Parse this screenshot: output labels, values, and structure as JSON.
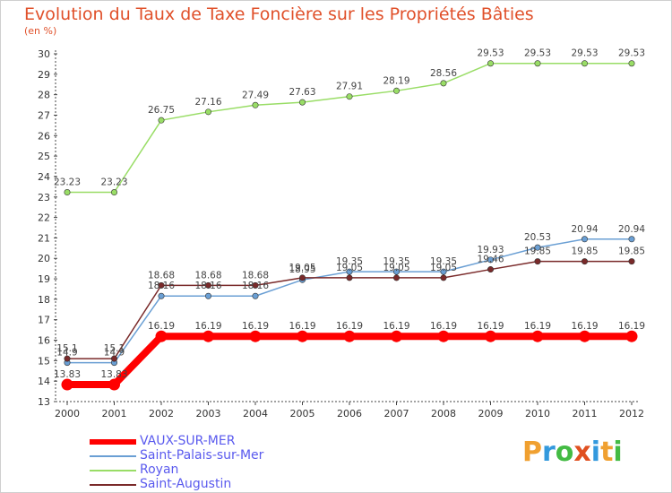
{
  "chart_data": {
    "type": "line",
    "title": "Evolution du Taux de Taxe Foncière sur les Propriétés Bâties",
    "ylabel": "(en %)",
    "xlabel": "",
    "x": [
      "2000",
      "2001",
      "2002",
      "2003",
      "2004",
      "2005",
      "2006",
      "2007",
      "2008",
      "2009",
      "2010",
      "2011",
      "2012"
    ],
    "ylim": [
      13,
      30
    ],
    "yticks": [
      "13",
      "14",
      "15",
      "16",
      "17",
      "18",
      "19",
      "20",
      "21",
      "22",
      "23",
      "24",
      "25",
      "26",
      "27",
      "28",
      "29",
      "30"
    ],
    "grid": false,
    "legend_position": "bottom-left",
    "series": [
      {
        "name": "VAUX-SUR-MER",
        "color": "#ff0000",
        "values": [
          13.83,
          13.83,
          16.19,
          16.19,
          16.19,
          16.19,
          16.19,
          16.19,
          16.19,
          16.19,
          16.19,
          16.19,
          16.19
        ],
        "labels": [
          "13.83",
          "13.83",
          "16.19",
          "16.19",
          "16.19",
          "16.19",
          "16.19",
          "16.19",
          "16.19",
          "16.19",
          "16.19",
          "16.19",
          "16.19"
        ]
      },
      {
        "name": "Saint-Palais-sur-Mer",
        "color": "#6a9fd4",
        "values": [
          14.9,
          14.9,
          18.16,
          18.16,
          18.16,
          18.95,
          19.35,
          19.35,
          19.35,
          19.93,
          20.53,
          20.94,
          20.94
        ],
        "labels": [
          "14.9",
          "14.9",
          "18.16",
          "18.16",
          "18.16",
          "18.95",
          "19.35",
          "19.35",
          "19.35",
          "19.93",
          "20.53",
          "20.94",
          "20.94"
        ]
      },
      {
        "name": "Royan",
        "color": "#99dd66",
        "values": [
          23.23,
          23.23,
          26.75,
          27.16,
          27.49,
          27.63,
          27.91,
          28.19,
          28.56,
          29.53,
          29.53,
          29.53,
          29.53
        ],
        "labels": [
          "23.23",
          "23.23",
          "26.75",
          "27.16",
          "27.49",
          "27.63",
          "27.91",
          "28.19",
          "28.56",
          "29.53",
          "29.53",
          "29.53",
          "29.53"
        ]
      },
      {
        "name": "Saint-Augustin",
        "color": "#7a2a2a",
        "values": [
          15.1,
          15.1,
          18.68,
          18.68,
          18.68,
          19.05,
          19.05,
          19.05,
          19.05,
          19.46,
          19.85,
          19.85,
          19.85
        ],
        "labels": [
          "15.1",
          "15.1",
          "18.68",
          "18.68",
          "18.68",
          "19.05",
          "19.05",
          "19.05",
          "19.05",
          "19.46",
          "19.85",
          "19.85",
          "19.85"
        ]
      }
    ]
  },
  "brand": {
    "letters": [
      "P",
      "r",
      "o",
      "x",
      "i",
      "t",
      "i"
    ],
    "colors": [
      "#f0a030",
      "#3399dd",
      "#44bb44",
      "#e05020",
      "#3399dd",
      "#f0a030",
      "#44bb44"
    ]
  }
}
